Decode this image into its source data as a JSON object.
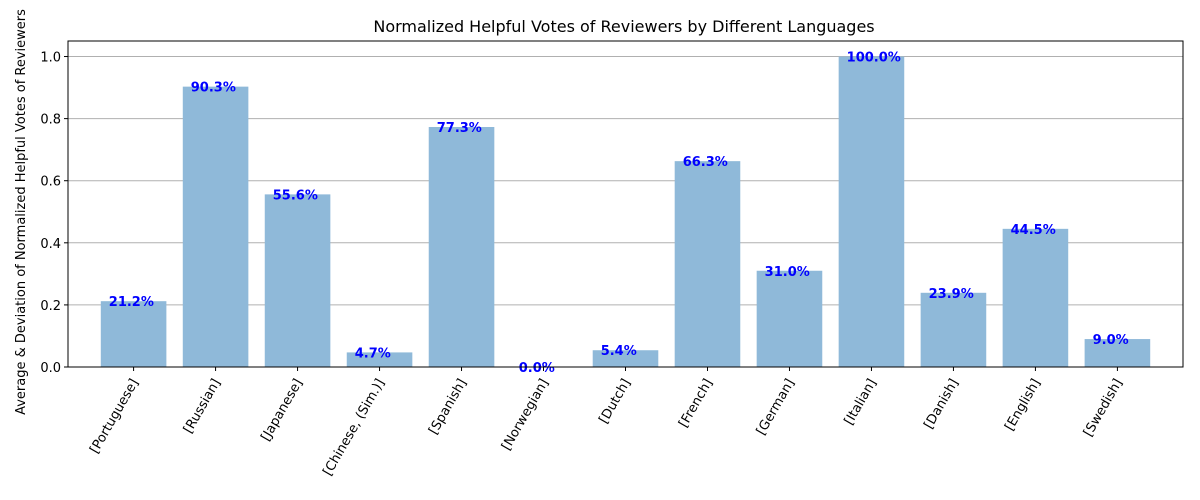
{
  "chart_data": {
    "type": "bar",
    "title": "Normalized Helpful Votes of Reviewers by Different Languages",
    "xlabel": "",
    "ylabel": "Average & Deviation of Normalized Helpful Votes of Reviewers",
    "categories": [
      "[Portuguese]",
      "[Russian]",
      "[Japanese]",
      "[Chinese, (Sim.)]",
      "[Spanish]",
      "[Norwegian]",
      "[Dutch]",
      "[French]",
      "[German]",
      "[Italian]",
      "[Danish]",
      "[English]",
      "[Swedish]"
    ],
    "values": [
      0.212,
      0.903,
      0.556,
      0.047,
      0.773,
      0.0,
      0.054,
      0.663,
      0.31,
      1.0,
      0.239,
      0.445,
      0.09
    ],
    "data_labels": [
      "21.2%",
      "90.3%",
      "55.6%",
      "4.7%",
      "77.3%",
      "0.0%",
      "5.4%",
      "66.3%",
      "31.0%",
      "100.0%",
      "23.9%",
      "44.5%",
      "9.0%"
    ],
    "yticks": [
      "0.0",
      "0.2",
      "0.4",
      "0.6",
      "0.8",
      "1.0"
    ],
    "ylim": [
      0,
      1.05
    ],
    "grid": "horizontal",
    "colors": {
      "bar": "#8fb9d9",
      "label": "#0000ff",
      "grid": "#b0b0b0"
    }
  }
}
